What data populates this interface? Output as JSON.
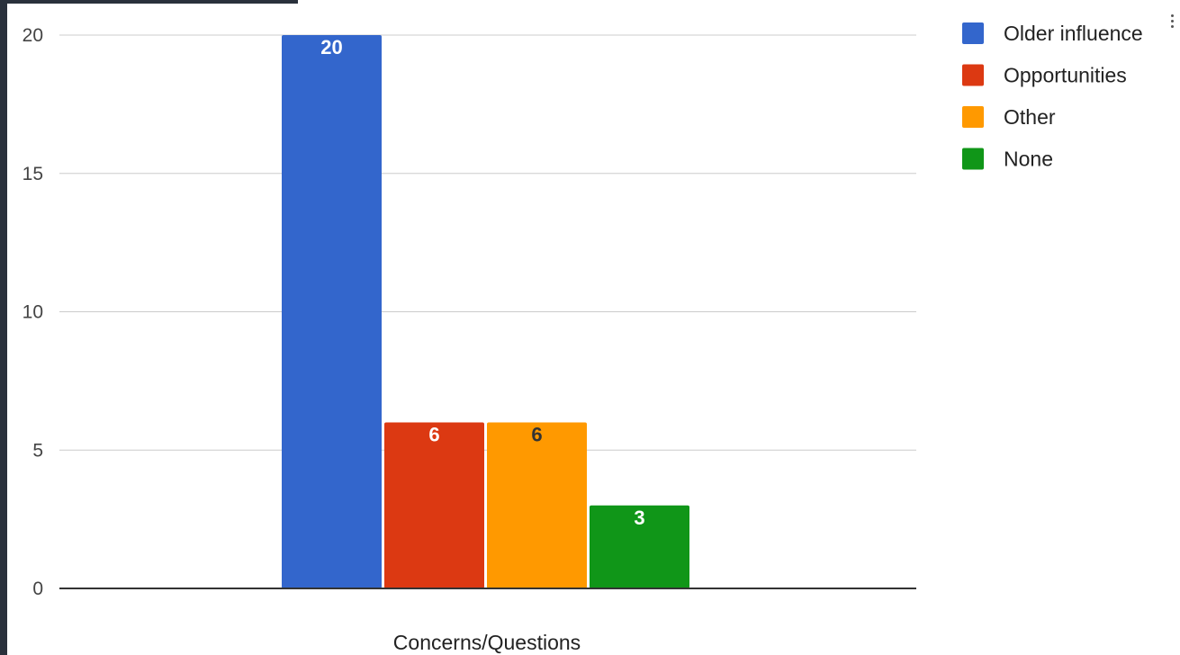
{
  "chart_data": {
    "type": "bar",
    "title": "",
    "xlabel": "Concerns/Questions",
    "ylabel": "",
    "categories": [
      "Concerns/Questions"
    ],
    "series": [
      {
        "name": "Older influence",
        "values": [
          20
        ],
        "color": "#3366cc",
        "label_color": "#ffffff"
      },
      {
        "name": "Opportunities",
        "values": [
          6
        ],
        "color": "#dc3912",
        "label_color": "#ffffff"
      },
      {
        "name": "Other",
        "values": [
          6
        ],
        "color": "#ff9900",
        "label_color": "#333333"
      },
      {
        "name": "None",
        "values": [
          3
        ],
        "color": "#109618",
        "label_color": "#ffffff"
      }
    ],
    "ylim": [
      0,
      20
    ],
    "yticks": [
      0,
      5,
      10,
      15,
      20
    ],
    "grid": true,
    "legend": "right"
  }
}
